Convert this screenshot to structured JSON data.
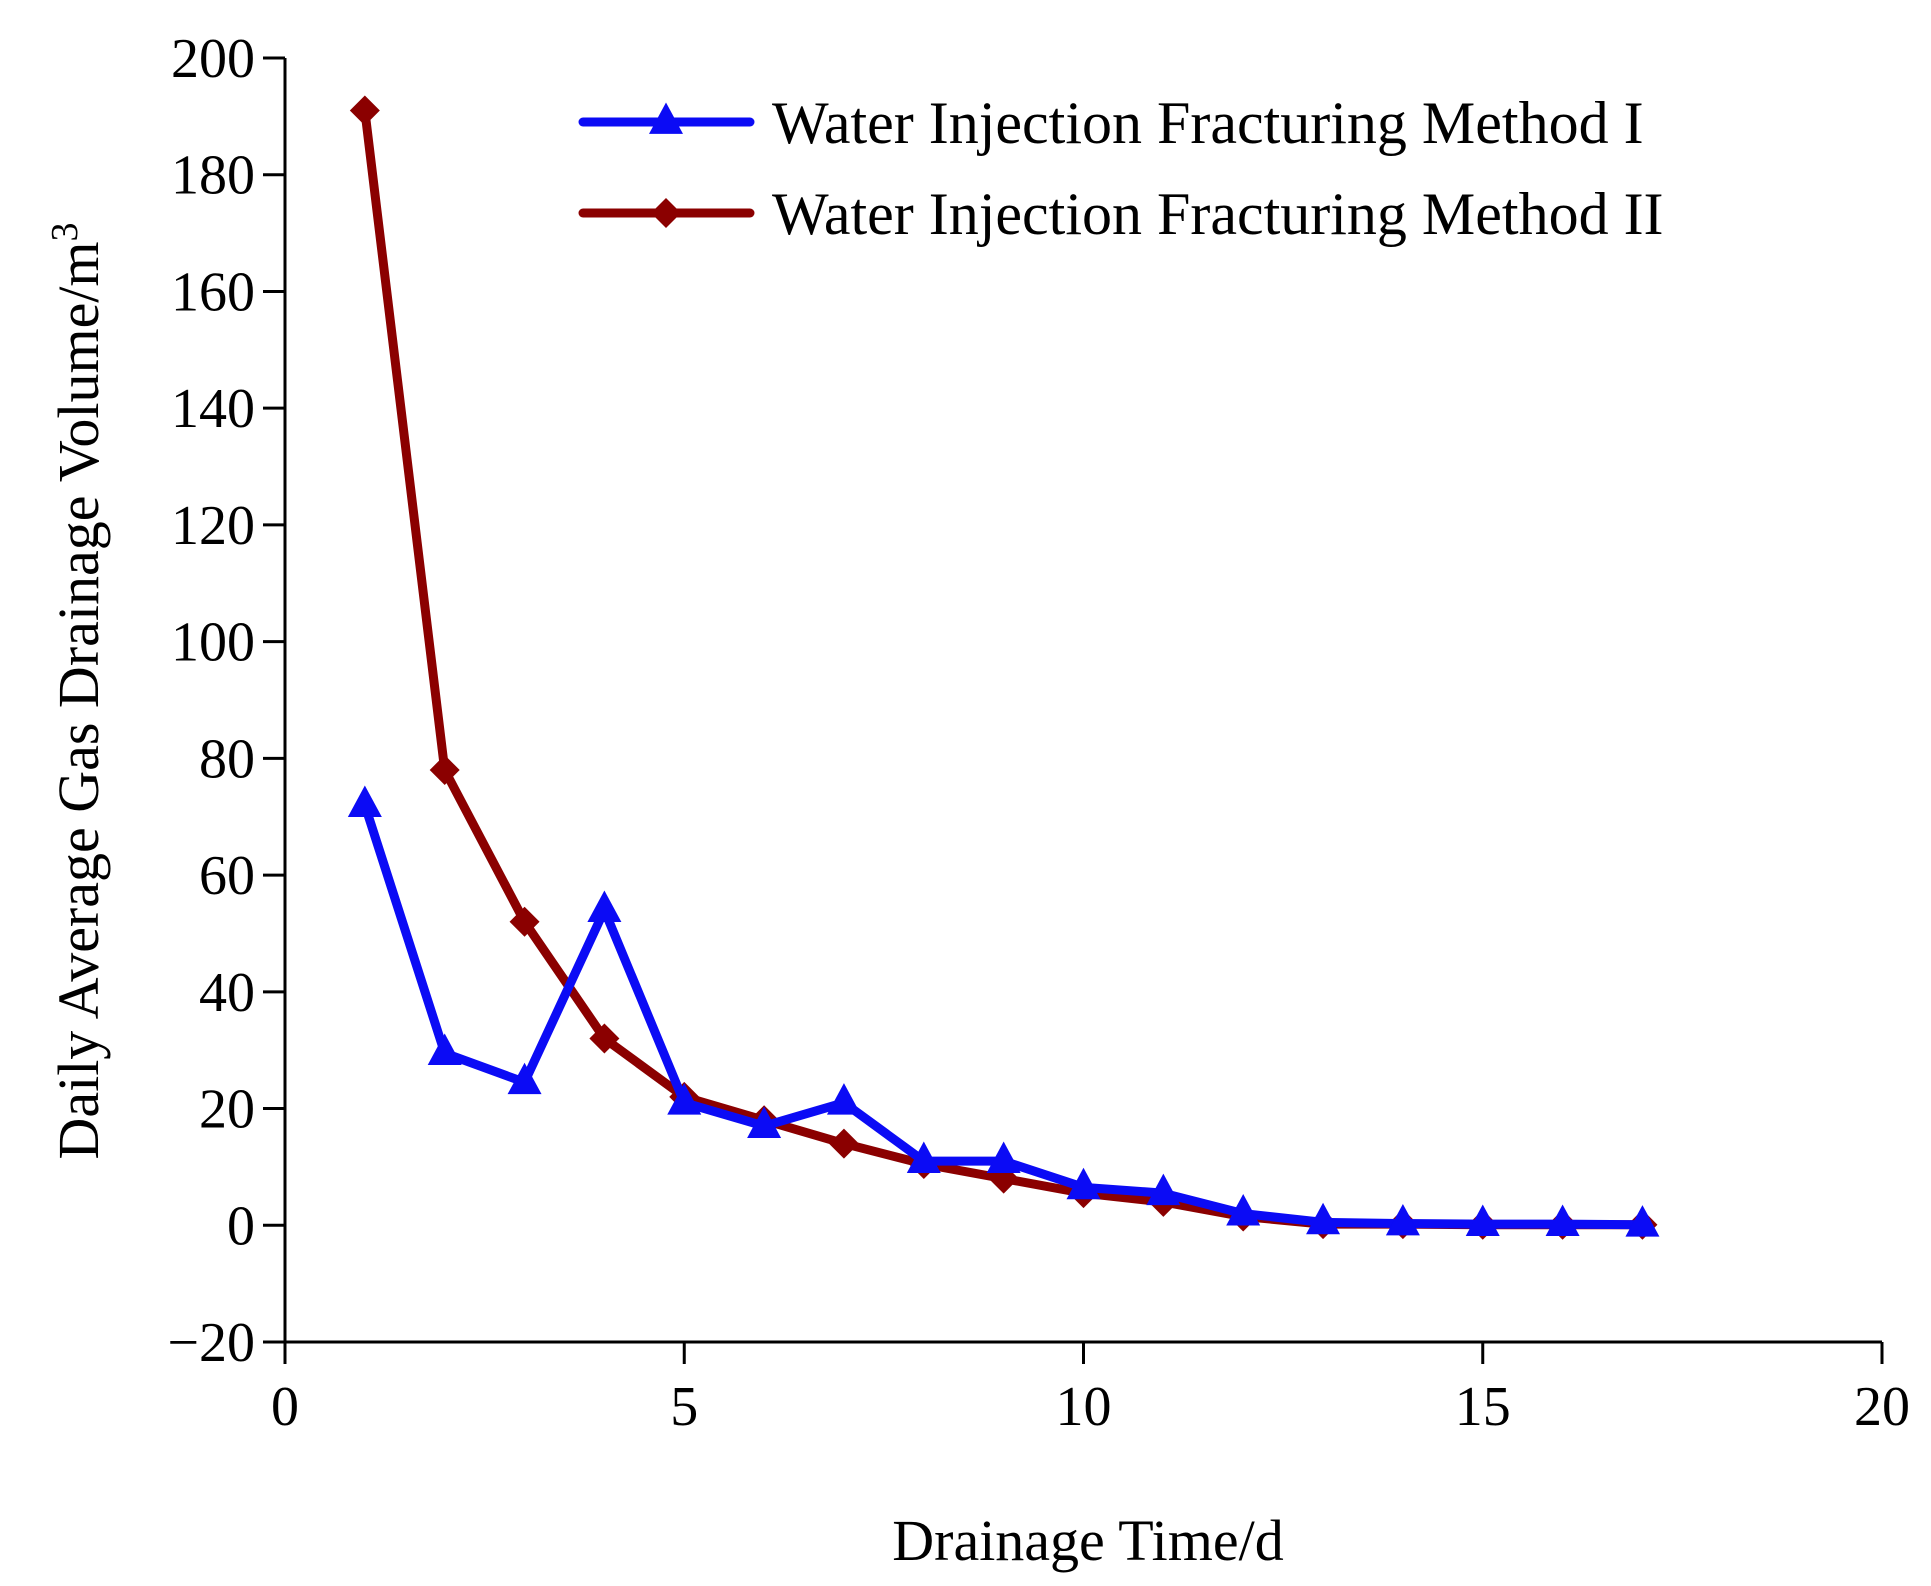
{
  "chart_data": {
    "type": "line",
    "title": "",
    "xlabel": "Drainage Time/d",
    "ylabel": "Daily Average Gas Drainage Volume/m",
    "ylabel_superscript": "3",
    "xlim": [
      0,
      20
    ],
    "ylim": [
      -20,
      200
    ],
    "xticks": [
      0,
      5,
      10,
      15,
      20
    ],
    "yticks": [
      -20,
      0,
      20,
      40,
      60,
      80,
      100,
      120,
      140,
      160,
      180,
      200
    ],
    "xtick_labels": [
      "0",
      "5",
      "10",
      "15",
      "20"
    ],
    "ytick_labels": [
      "−20",
      "0",
      "20",
      "40",
      "60",
      "80",
      "100",
      "120",
      "140",
      "160",
      "180",
      "200"
    ],
    "grid": false,
    "legend_position": "top-right",
    "x": [
      1,
      2,
      3,
      4,
      5,
      6,
      7,
      8,
      9,
      10,
      11,
      12,
      13,
      14,
      15,
      16,
      17
    ],
    "series": [
      {
        "name": "Water Injection Fracturing Method I",
        "color": "#0b0bf5",
        "marker": "triangle",
        "values": [
          72,
          29.5,
          24.5,
          54,
          21,
          17,
          21,
          11,
          11,
          6.5,
          5.5,
          2,
          0.5,
          0.3,
          0.2,
          0.2,
          0.1
        ]
      },
      {
        "name": "Water Injection Fracturing Method II",
        "color": "#8b0000",
        "marker": "diamond",
        "values": [
          191,
          78,
          52,
          32,
          22,
          18,
          14,
          10.5,
          8,
          5.5,
          4,
          1.5,
          0.2,
          0.2,
          0.1,
          0.1,
          0.1
        ]
      }
    ]
  }
}
